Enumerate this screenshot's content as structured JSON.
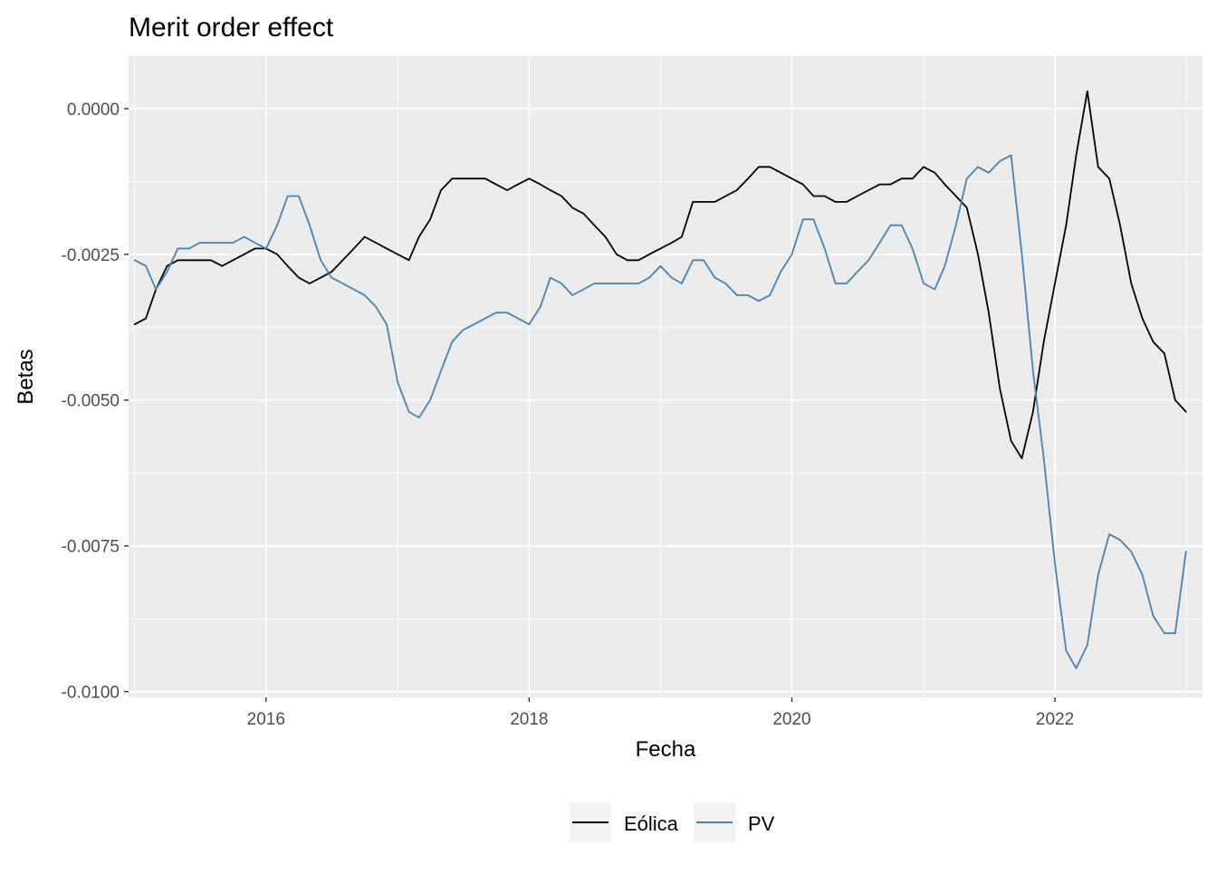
{
  "chart_data": {
    "type": "line",
    "title": "Merit order effect",
    "xlabel": "Fecha",
    "ylabel": "Betas",
    "xlim": [
      "2014-12-15",
      "2023-02-15"
    ],
    "ylim": [
      -0.0101,
      0.0009
    ],
    "x_ticks": [
      "2016",
      "2018",
      "2020",
      "2022"
    ],
    "x_tick_dates": [
      "2016-01-01",
      "2018-01-01",
      "2020-01-01",
      "2022-01-01"
    ],
    "y_ticks": [
      "0.0000",
      "-0.0025",
      "-0.0050",
      "-0.0075",
      "-0.0100"
    ],
    "y_tick_values": [
      0,
      -0.0025,
      -0.005,
      -0.0075,
      -0.01
    ],
    "grid": true,
    "legend_position": "bottom",
    "series": [
      {
        "name": "Eólica",
        "color": "#000000",
        "x": [
          "2015-01-01",
          "2015-02-01",
          "2015-03-01",
          "2015-04-01",
          "2015-05-01",
          "2015-06-01",
          "2015-07-01",
          "2015-08-01",
          "2015-09-01",
          "2015-10-01",
          "2015-11-01",
          "2015-12-01",
          "2016-01-01",
          "2016-02-01",
          "2016-03-01",
          "2016-04-01",
          "2016-05-01",
          "2016-06-01",
          "2016-07-01",
          "2016-08-01",
          "2016-09-01",
          "2016-10-01",
          "2016-11-01",
          "2016-12-01",
          "2017-01-01",
          "2017-02-01",
          "2017-03-01",
          "2017-04-01",
          "2017-05-01",
          "2017-06-01",
          "2017-07-01",
          "2017-08-01",
          "2017-09-01",
          "2017-10-01",
          "2017-11-01",
          "2017-12-01",
          "2018-01-01",
          "2018-02-01",
          "2018-03-01",
          "2018-04-01",
          "2018-05-01",
          "2018-06-01",
          "2018-07-01",
          "2018-08-01",
          "2018-09-01",
          "2018-10-01",
          "2018-11-01",
          "2018-12-01",
          "2019-01-01",
          "2019-02-01",
          "2019-03-01",
          "2019-04-01",
          "2019-05-01",
          "2019-06-01",
          "2019-07-01",
          "2019-08-01",
          "2019-09-01",
          "2019-10-01",
          "2019-11-01",
          "2019-12-01",
          "2020-01-01",
          "2020-02-01",
          "2020-03-01",
          "2020-04-01",
          "2020-05-01",
          "2020-06-01",
          "2020-07-01",
          "2020-08-01",
          "2020-09-01",
          "2020-10-01",
          "2020-11-01",
          "2020-12-01",
          "2021-01-01",
          "2021-02-01",
          "2021-03-01",
          "2021-04-01",
          "2021-05-01",
          "2021-06-01",
          "2021-07-01",
          "2021-08-01",
          "2021-09-01",
          "2021-10-01",
          "2021-11-01",
          "2021-12-01",
          "2022-01-01",
          "2022-02-01",
          "2022-03-01",
          "2022-04-01",
          "2022-05-01",
          "2022-06-01",
          "2022-07-01",
          "2022-08-01",
          "2022-09-01",
          "2022-10-01",
          "2022-11-01",
          "2022-12-01",
          "2022-12-31"
        ],
        "y": [
          -0.0037,
          -0.0036,
          -0.0031,
          -0.0027,
          -0.0026,
          -0.0026,
          -0.0026,
          -0.0026,
          -0.0027,
          -0.0026,
          -0.0025,
          -0.0024,
          -0.0024,
          -0.0025,
          -0.0027,
          -0.0029,
          -0.003,
          -0.0029,
          -0.0028,
          -0.0026,
          -0.0024,
          -0.0022,
          -0.0023,
          -0.0024,
          -0.0025,
          -0.0026,
          -0.0022,
          -0.0019,
          -0.0014,
          -0.0012,
          -0.0012,
          -0.0012,
          -0.0012,
          -0.0013,
          -0.0014,
          -0.0013,
          -0.0012,
          -0.0013,
          -0.0014,
          -0.0015,
          -0.0017,
          -0.0018,
          -0.002,
          -0.0022,
          -0.0025,
          -0.0026,
          -0.0026,
          -0.0025,
          -0.0024,
          -0.0023,
          -0.0022,
          -0.0016,
          -0.0016,
          -0.0016,
          -0.0015,
          -0.0014,
          -0.0012,
          -0.001,
          -0.001,
          -0.0011,
          -0.0012,
          -0.0013,
          -0.0015,
          -0.0015,
          -0.0016,
          -0.0016,
          -0.0015,
          -0.0014,
          -0.0013,
          -0.0013,
          -0.0012,
          -0.0012,
          -0.001,
          -0.0011,
          -0.0013,
          -0.0015,
          -0.0017,
          -0.0025,
          -0.0035,
          -0.0048,
          -0.0057,
          -0.006,
          -0.0052,
          -0.004,
          -0.003,
          -0.002,
          -0.0008,
          0.0003,
          -0.001,
          -0.0012,
          -0.002,
          -0.003,
          -0.0036,
          -0.004,
          -0.0042,
          -0.005,
          -0.0052
        ]
      },
      {
        "name": "PV",
        "color": "#4682b4",
        "x": [
          "2015-01-01",
          "2015-02-01",
          "2015-03-01",
          "2015-04-01",
          "2015-05-01",
          "2015-06-01",
          "2015-07-01",
          "2015-08-01",
          "2015-09-01",
          "2015-10-01",
          "2015-11-01",
          "2015-12-01",
          "2016-01-01",
          "2016-02-01",
          "2016-03-01",
          "2016-04-01",
          "2016-05-01",
          "2016-06-01",
          "2016-07-01",
          "2016-08-01",
          "2016-09-01",
          "2016-10-01",
          "2016-11-01",
          "2016-12-01",
          "2017-01-01",
          "2017-02-01",
          "2017-03-01",
          "2017-04-01",
          "2017-05-01",
          "2017-06-01",
          "2017-07-01",
          "2017-08-01",
          "2017-09-01",
          "2017-10-01",
          "2017-11-01",
          "2017-12-01",
          "2018-01-01",
          "2018-02-01",
          "2018-03-01",
          "2018-04-01",
          "2018-05-01",
          "2018-06-01",
          "2018-07-01",
          "2018-08-01",
          "2018-09-01",
          "2018-10-01",
          "2018-11-01",
          "2018-12-01",
          "2019-01-01",
          "2019-02-01",
          "2019-03-01",
          "2019-04-01",
          "2019-05-01",
          "2019-06-01",
          "2019-07-01",
          "2019-08-01",
          "2019-09-01",
          "2019-10-01",
          "2019-11-01",
          "2019-12-01",
          "2020-01-01",
          "2020-02-01",
          "2020-03-01",
          "2020-04-01",
          "2020-05-01",
          "2020-06-01",
          "2020-07-01",
          "2020-08-01",
          "2020-09-01",
          "2020-10-01",
          "2020-11-01",
          "2020-12-01",
          "2021-01-01",
          "2021-02-01",
          "2021-03-01",
          "2021-04-01",
          "2021-05-01",
          "2021-06-01",
          "2021-07-01",
          "2021-08-01",
          "2021-09-01",
          "2021-10-01",
          "2021-11-01",
          "2021-12-01",
          "2022-01-01",
          "2022-02-01",
          "2022-03-01",
          "2022-04-01",
          "2022-05-01",
          "2022-06-01",
          "2022-07-01",
          "2022-08-01",
          "2022-09-01",
          "2022-10-01",
          "2022-11-01",
          "2022-12-01",
          "2022-12-31"
        ],
        "y": [
          -0.0026,
          -0.0027,
          -0.0031,
          -0.0028,
          -0.0024,
          -0.0024,
          -0.0023,
          -0.0023,
          -0.0023,
          -0.0023,
          -0.0022,
          -0.0023,
          -0.0024,
          -0.002,
          -0.0015,
          -0.0015,
          -0.002,
          -0.0026,
          -0.0029,
          -0.003,
          -0.0031,
          -0.0032,
          -0.0034,
          -0.0037,
          -0.0047,
          -0.0052,
          -0.0053,
          -0.005,
          -0.0045,
          -0.004,
          -0.0038,
          -0.0037,
          -0.0036,
          -0.0035,
          -0.0035,
          -0.0036,
          -0.0037,
          -0.0034,
          -0.0029,
          -0.003,
          -0.0032,
          -0.0031,
          -0.003,
          -0.003,
          -0.003,
          -0.003,
          -0.003,
          -0.0029,
          -0.0027,
          -0.0029,
          -0.003,
          -0.0026,
          -0.0026,
          -0.0029,
          -0.003,
          -0.0032,
          -0.0032,
          -0.0033,
          -0.0032,
          -0.0028,
          -0.0025,
          -0.0019,
          -0.0019,
          -0.0024,
          -0.003,
          -0.003,
          -0.0028,
          -0.0026,
          -0.0023,
          -0.002,
          -0.002,
          -0.0024,
          -0.003,
          -0.0031,
          -0.0027,
          -0.002,
          -0.0012,
          -0.001,
          -0.0011,
          -0.0009,
          -0.0008,
          -0.0025,
          -0.0045,
          -0.006,
          -0.0078,
          -0.0093,
          -0.0096,
          -0.0092,
          -0.008,
          -0.0073,
          -0.0074,
          -0.0076,
          -0.008,
          -0.0087,
          -0.009,
          -0.009,
          -0.0076
        ]
      }
    ]
  }
}
